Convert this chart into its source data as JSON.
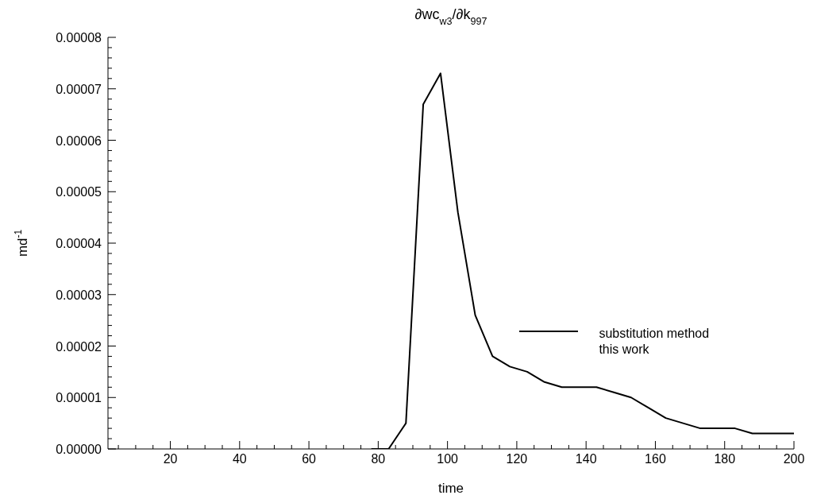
{
  "chart_data": {
    "type": "line",
    "title": "∂wc$_{w3}$/∂k$_{997}$",
    "xlabel": "time",
    "ylabel": "md$^{-1}$",
    "x": [
      78,
      83,
      88,
      93,
      98,
      103,
      108,
      113,
      118,
      123,
      128,
      133,
      138,
      143,
      148,
      153,
      158,
      163,
      168,
      173,
      178,
      183,
      188,
      193,
      198,
      200
    ],
    "series": [
      {
        "name": "substitution method this work",
        "color": "#000000",
        "values": [
          0,
          0,
          5e-06,
          6.7e-05,
          7.3e-05,
          4.6e-05,
          2.6e-05,
          1.8e-05,
          1.6e-05,
          1.5e-05,
          1.3e-05,
          1.2e-05,
          1.2e-05,
          1.2e-05,
          1.1e-05,
          1e-05,
          8e-06,
          6e-06,
          5e-06,
          4e-06,
          4e-06,
          4e-06,
          3e-06,
          3e-06,
          3e-06,
          3e-06
        ]
      }
    ],
    "xlim": [
      2,
      200
    ],
    "xticks": [
      {
        "value": 5,
        "label": null
      },
      {
        "value": 10,
        "label": null
      },
      {
        "value": 15,
        "label": null
      },
      20,
      {
        "value": 25,
        "label": null
      },
      {
        "value": 30,
        "label": null
      },
      {
        "value": 35,
        "label": null
      },
      40,
      {
        "value": 45,
        "label": null
      },
      {
        "value": 50,
        "label": null
      },
      {
        "value": 55,
        "label": null
      },
      60,
      {
        "value": 65,
        "label": null
      },
      {
        "value": 70,
        "label": null
      },
      {
        "value": 75,
        "label": null
      },
      80,
      {
        "value": 85,
        "label": null
      },
      {
        "value": 90,
        "label": null
      },
      {
        "value": 95,
        "label": null
      },
      100,
      {
        "value": 105,
        "label": null
      },
      {
        "value": 110,
        "label": null
      },
      {
        "value": 115,
        "label": null
      },
      120,
      {
        "value": 125,
        "label": null
      },
      {
        "value": 130,
        "label": null
      },
      {
        "value": 135,
        "label": null
      },
      140,
      {
        "value": 145,
        "label": null
      },
      {
        "value": 150,
        "label": null
      },
      {
        "value": 155,
        "label": null
      },
      160,
      {
        "value": 165,
        "label": null
      },
      {
        "value": 170,
        "label": null
      },
      {
        "value": 175,
        "label": null
      },
      180,
      {
        "value": 185,
        "label": null
      },
      {
        "value": 190,
        "label": null
      },
      {
        "value": 195,
        "label": null
      },
      200
    ],
    "ylim": [
      0,
      8e-05
    ],
    "yticks": [
      {
        "value": 0,
        "label": "0.00000"
      },
      {
        "value": 2e-06,
        "label": null
      },
      {
        "value": 4e-06,
        "label": null
      },
      {
        "value": 6e-06,
        "label": null
      },
      {
        "value": 8e-06,
        "label": null
      },
      {
        "value": 1e-05,
        "label": "0.00001"
      },
      {
        "value": 1.2e-05,
        "label": null
      },
      {
        "value": 1.4e-05,
        "label": null
      },
      {
        "value": 1.6e-05,
        "label": null
      },
      {
        "value": 1.8e-05,
        "label": null
      },
      {
        "value": 2e-05,
        "label": "0.00002"
      },
      {
        "value": 2.2e-05,
        "label": null
      },
      {
        "value": 2.4e-05,
        "label": null
      },
      {
        "value": 2.6e-05,
        "label": null
      },
      {
        "value": 2.8e-05,
        "label": null
      },
      {
        "value": 3e-05,
        "label": "0.00003"
      },
      {
        "value": 3.2e-05,
        "label": null
      },
      {
        "value": 3.4e-05,
        "label": null
      },
      {
        "value": 3.6e-05,
        "label": null
      },
      {
        "value": 3.8e-05,
        "label": null
      },
      {
        "value": 4e-05,
        "label": "0.00004"
      },
      {
        "value": 4.2e-05,
        "label": null
      },
      {
        "value": 4.4e-05,
        "label": null
      },
      {
        "value": 4.6e-05,
        "label": null
      },
      {
        "value": 4.8e-05,
        "label": null
      },
      {
        "value": 5e-05,
        "label": "0.00005"
      },
      {
        "value": 5.2e-05,
        "label": null
      },
      {
        "value": 5.4e-05,
        "label": null
      },
      {
        "value": 5.6e-05,
        "label": null
      },
      {
        "value": 5.8e-05,
        "label": null
      },
      {
        "value": 6e-05,
        "label": "0.00006"
      },
      {
        "value": 6.2e-05,
        "label": null
      },
      {
        "value": 6.4e-05,
        "label": null
      },
      {
        "value": 6.6e-05,
        "label": null
      },
      {
        "value": 6.8e-05,
        "label": null
      },
      {
        "value": 7e-05,
        "label": "0.00007"
      },
      {
        "value": 7.2e-05,
        "label": null
      },
      {
        "value": 7.4e-05,
        "label": null
      },
      {
        "value": 7.6e-05,
        "label": null
      },
      {
        "value": 7.8e-05,
        "label": null
      },
      {
        "value": 8e-05,
        "label": "0.00008"
      }
    ],
    "legend": "right",
    "grid": false,
    "marker": "none",
    "line_style": "solid"
  }
}
